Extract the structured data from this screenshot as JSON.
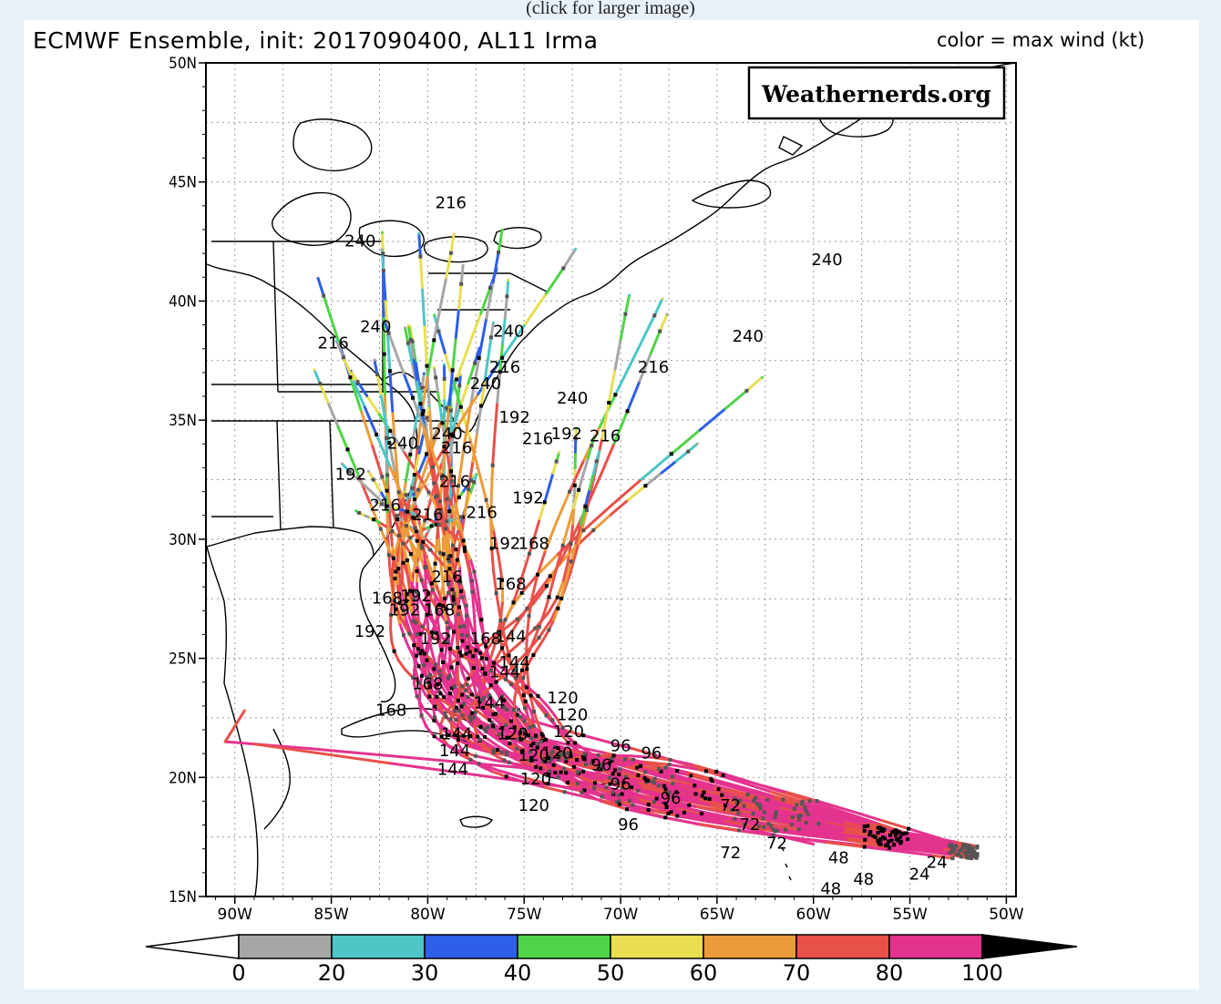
{
  "page": {
    "caption": "(click for larger image)"
  },
  "map": {
    "title": "ECMWF Ensemble, init: 2017090400, AL11 Irma",
    "color_note": "color = max wind (kt)",
    "watermark": "Weathernerds.org",
    "lat_labels": [
      "50N",
      "45N",
      "40N",
      "35N",
      "30N",
      "25N",
      "20N",
      "15N"
    ],
    "lon_labels": [
      "90W",
      "85W",
      "80W",
      "75W",
      "70W",
      "65W",
      "60W",
      "55W",
      "50W"
    ],
    "lat_range": [
      15,
      50
    ],
    "lon_range": [
      -91.5,
      -49.5
    ],
    "colorbar": {
      "ticks": [
        "0",
        "20",
        "30",
        "40",
        "50",
        "60",
        "70",
        "80",
        "100"
      ],
      "colors": [
        "#a6a6a6",
        "#4ec6c8",
        "#2d5fe8",
        "#4fd447",
        "#e8de50",
        "#ec9b3b",
        "#e8504a",
        "#e4338f"
      ],
      "under_color": "#ffffff",
      "over_color": "#000000"
    },
    "hour_labels": [
      {
        "text": "240",
        "lon": -83.5,
        "lat": 42.3
      },
      {
        "text": "216",
        "lon": -78.8,
        "lat": 43.9
      },
      {
        "text": "240",
        "lon": -59.3,
        "lat": 41.5
      },
      {
        "text": "240",
        "lon": -63.4,
        "lat": 38.3
      },
      {
        "text": "216",
        "lon": -68.3,
        "lat": 37.0
      },
      {
        "text": "240",
        "lon": -82.7,
        "lat": 38.7
      },
      {
        "text": "216",
        "lon": -84.9,
        "lat": 38.0
      },
      {
        "text": "240",
        "lon": -75.8,
        "lat": 38.5
      },
      {
        "text": "216",
        "lon": -76.0,
        "lat": 37.0
      },
      {
        "text": "240",
        "lon": -77.0,
        "lat": 36.3
      },
      {
        "text": "240",
        "lon": -72.5,
        "lat": 35.7
      },
      {
        "text": "192",
        "lon": -75.5,
        "lat": 34.9
      },
      {
        "text": "216",
        "lon": -70.8,
        "lat": 34.1
      },
      {
        "text": "192",
        "lon": -72.8,
        "lat": 34.2
      },
      {
        "text": "216",
        "lon": -74.3,
        "lat": 34.0
      },
      {
        "text": "240",
        "lon": -79.0,
        "lat": 34.2
      },
      {
        "text": "240",
        "lon": -81.3,
        "lat": 33.8
      },
      {
        "text": "216",
        "lon": -78.5,
        "lat": 33.6
      },
      {
        "text": "192",
        "lon": -84.0,
        "lat": 32.5
      },
      {
        "text": "216",
        "lon": -78.6,
        "lat": 32.2
      },
      {
        "text": "192",
        "lon": -74.8,
        "lat": 31.5
      },
      {
        "text": "216",
        "lon": -82.2,
        "lat": 31.2
      },
      {
        "text": "216",
        "lon": -80.0,
        "lat": 30.8
      },
      {
        "text": "216",
        "lon": -77.2,
        "lat": 30.9
      },
      {
        "text": "192",
        "lon": -76.0,
        "lat": 29.6
      },
      {
        "text": "168",
        "lon": -74.5,
        "lat": 29.6
      },
      {
        "text": "216",
        "lon": -79.0,
        "lat": 28.2
      },
      {
        "text": "168",
        "lon": -75.7,
        "lat": 27.9
      },
      {
        "text": "168",
        "lon": -82.1,
        "lat": 27.3
      },
      {
        "text": "192",
        "lon": -80.6,
        "lat": 27.4
      },
      {
        "text": "192",
        "lon": -81.2,
        "lat": 26.8
      },
      {
        "text": "168",
        "lon": -79.4,
        "lat": 26.8
      },
      {
        "text": "192",
        "lon": -83.0,
        "lat": 25.9
      },
      {
        "text": "192",
        "lon": -79.6,
        "lat": 25.6
      },
      {
        "text": "168",
        "lon": -77.0,
        "lat": 25.6
      },
      {
        "text": "144",
        "lon": -75.7,
        "lat": 25.7
      },
      {
        "text": "144",
        "lon": -75.5,
        "lat": 24.6
      },
      {
        "text": "144",
        "lon": -76.0,
        "lat": 24.2
      },
      {
        "text": "168",
        "lon": -80.0,
        "lat": 23.7
      },
      {
        "text": "144",
        "lon": -76.8,
        "lat": 22.9
      },
      {
        "text": "120",
        "lon": -73.0,
        "lat": 23.1
      },
      {
        "text": "168",
        "lon": -81.9,
        "lat": 22.6
      },
      {
        "text": "120",
        "lon": -72.5,
        "lat": 22.4
      },
      {
        "text": "120",
        "lon": -72.7,
        "lat": 21.7
      },
      {
        "text": "144",
        "lon": -78.5,
        "lat": 21.6
      },
      {
        "text": "120",
        "lon": -75.6,
        "lat": 21.6
      },
      {
        "text": "144",
        "lon": -78.6,
        "lat": 20.9
      },
      {
        "text": "120",
        "lon": -74.5,
        "lat": 20.7
      },
      {
        "text": "120",
        "lon": -73.3,
        "lat": 20.8
      },
      {
        "text": "96",
        "lon": -70.0,
        "lat": 21.1
      },
      {
        "text": "96",
        "lon": -68.4,
        "lat": 20.8
      },
      {
        "text": "96",
        "lon": -71.0,
        "lat": 20.3
      },
      {
        "text": "120",
        "lon": -74.4,
        "lat": 19.7
      },
      {
        "text": "96",
        "lon": -70.0,
        "lat": 19.5
      },
      {
        "text": "96",
        "lon": -67.4,
        "lat": 18.9
      },
      {
        "text": "144",
        "lon": -78.7,
        "lat": 20.1
      },
      {
        "text": "120",
        "lon": -74.5,
        "lat": 18.6
      },
      {
        "text": "96",
        "lon": -69.6,
        "lat": 17.8
      },
      {
        "text": "72",
        "lon": -64.3,
        "lat": 18.6
      },
      {
        "text": "72",
        "lon": -63.3,
        "lat": 17.8
      },
      {
        "text": "72",
        "lon": -61.9,
        "lat": 17.0
      },
      {
        "text": "72",
        "lon": -64.3,
        "lat": 16.6
      },
      {
        "text": "48",
        "lon": -58.7,
        "lat": 16.4
      },
      {
        "text": "48",
        "lon": -57.4,
        "lat": 15.5
      },
      {
        "text": "48",
        "lon": -59.1,
        "lat": 15.1
      },
      {
        "text": "24",
        "lon": -54.5,
        "lat": 15.7
      },
      {
        "text": "24",
        "lon": -53.6,
        "lat": 16.2
      }
    ]
  }
}
